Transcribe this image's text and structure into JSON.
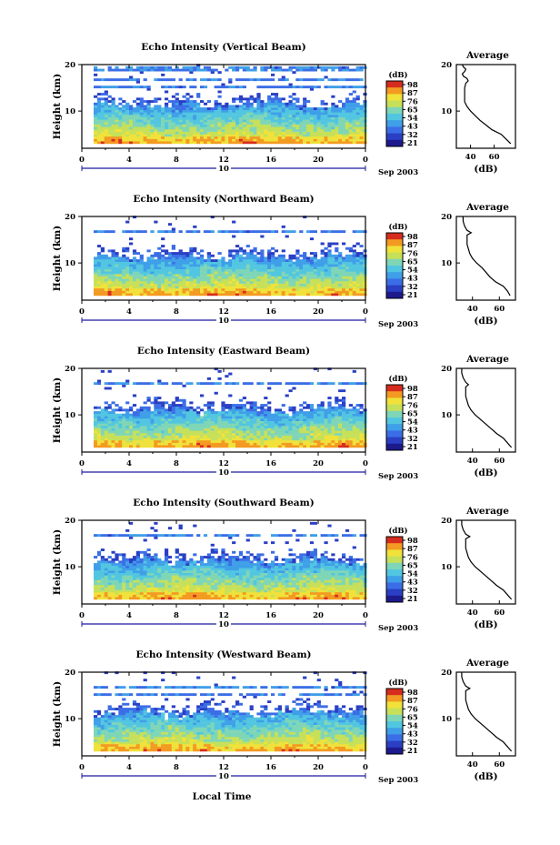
{
  "palette": [
    "#1c1a8c",
    "#2a3fc4",
    "#3b6ee6",
    "#3f9fe8",
    "#52c6e0",
    "#7fd6b6",
    "#c6e05a",
    "#f0e23a",
    "#f39a22",
    "#d62c1f"
  ],
  "colorbar": {
    "unit_label": "(dB)",
    "ticks": [
      "98",
      "87",
      "76",
      "65",
      "54",
      "43",
      "32",
      "21"
    ]
  },
  "footer": {
    "xlabel": "Local Time"
  },
  "chart_data": [
    {
      "type": "heatmap",
      "title": "Echo Intensity (Vertical Beam)",
      "ylabel": "Height (km)",
      "xticks": [
        "0",
        "4",
        "8",
        "12",
        "16",
        "20",
        "0"
      ],
      "yticks": [
        "20",
        "10"
      ],
      "xlim": [
        0,
        24
      ],
      "ylim": [
        2,
        20
      ],
      "date_day": "10",
      "date_month": "Sep 2003",
      "intensity_range_db": [
        21,
        98
      ],
      "clear_air_layer_top_km": 11,
      "upper_bands_km": [
        15,
        16.5,
        18.8
      ],
      "average_profile": {
        "title": "Average",
        "xlabel": "(dB)",
        "xticks": [
          "40",
          "60"
        ],
        "yticks": [
          "20",
          "10"
        ],
        "xlim": [
          28,
          78
        ],
        "height_km": [
          3,
          4,
          5,
          6,
          7,
          8,
          9,
          10,
          11,
          12,
          13,
          14,
          15,
          16,
          16.5,
          17,
          17.5,
          18,
          18.5,
          19,
          19.5,
          20
        ],
        "db": [
          74,
          70,
          66,
          58,
          53,
          48,
          44,
          40,
          37,
          35,
          35,
          35,
          35,
          36,
          38,
          37,
          34,
          33,
          35,
          36,
          34,
          33
        ]
      }
    },
    {
      "type": "heatmap",
      "title": "Echo Intensity (Northward Beam)",
      "ylabel": "Height (km)",
      "xticks": [
        "0",
        "4",
        "8",
        "12",
        "16",
        "20",
        "0"
      ],
      "yticks": [
        "20",
        "10"
      ],
      "xlim": [
        0,
        24
      ],
      "ylim": [
        2,
        20
      ],
      "date_day": "10",
      "date_month": "Sep 2003",
      "intensity_range_db": [
        21,
        98
      ],
      "clear_air_layer_top_km": 11,
      "upper_bands_km": [
        16.5
      ],
      "average_profile": {
        "title": "Average",
        "xlabel": "(dB)",
        "xticks": [
          "40",
          "60"
        ],
        "yticks": [
          "20",
          "10"
        ],
        "xlim": [
          28,
          72
        ],
        "height_km": [
          3,
          4,
          5,
          6,
          7,
          8,
          9,
          10,
          11,
          12,
          13,
          14,
          15,
          16,
          16.5,
          17,
          17.5,
          18,
          19,
          20
        ],
        "db": [
          68,
          66,
          63,
          57,
          53,
          50,
          47,
          43,
          40,
          38,
          37,
          36,
          36,
          36,
          39,
          36,
          35,
          34,
          33,
          33
        ]
      }
    },
    {
      "type": "heatmap",
      "title": "Echo Intensity (Eastward Beam)",
      "ylabel": "Height (km)",
      "xticks": [
        "0",
        "4",
        "8",
        "12",
        "16",
        "20",
        "0"
      ],
      "yticks": [
        "20",
        "10"
      ],
      "xlim": [
        0,
        24
      ],
      "ylim": [
        2,
        20
      ],
      "date_day": "10",
      "date_month": "Sep 2003",
      "intensity_range_db": [
        21,
        98
      ],
      "clear_air_layer_top_km": 11,
      "upper_bands_km": [
        16.5
      ],
      "average_profile": {
        "title": "Average",
        "xlabel": "(dB)",
        "xticks": [
          "40",
          "60"
        ],
        "yticks": [
          "20",
          "10"
        ],
        "xlim": [
          28,
          72
        ],
        "height_km": [
          3,
          4,
          5,
          6,
          7,
          8,
          9,
          10,
          11,
          12,
          13,
          14,
          15,
          16,
          16.5,
          17,
          18,
          19,
          20
        ],
        "db": [
          69,
          66,
          63,
          58,
          54,
          50,
          46,
          42,
          39,
          37,
          36,
          35,
          35,
          35,
          37,
          35,
          33,
          32,
          32
        ]
      }
    },
    {
      "type": "heatmap",
      "title": "Echo Intensity (Southward Beam)",
      "ylabel": "Height (km)",
      "xticks": [
        "0",
        "4",
        "8",
        "12",
        "16",
        "20",
        "0"
      ],
      "yticks": [
        "20",
        "10"
      ],
      "xlim": [
        0,
        24
      ],
      "ylim": [
        2,
        20
      ],
      "date_day": "10",
      "date_month": "Sep 2003",
      "intensity_range_db": [
        21,
        98
      ],
      "clear_air_layer_top_km": 11,
      "upper_bands_km": [
        16.5
      ],
      "average_profile": {
        "title": "Average",
        "xlabel": "(dB)",
        "xticks": [
          "40",
          "60"
        ],
        "yticks": [
          "20",
          "10"
        ],
        "xlim": [
          28,
          72
        ],
        "height_km": [
          3,
          4,
          5,
          6,
          7,
          8,
          9,
          10,
          11,
          12,
          13,
          14,
          15,
          16,
          16.5,
          17,
          18,
          19,
          20
        ],
        "db": [
          69,
          66,
          63,
          58,
          54,
          50,
          46,
          42,
          39,
          37,
          36,
          35,
          35,
          35,
          38,
          35,
          33,
          32,
          32
        ]
      }
    },
    {
      "type": "heatmap",
      "title": "Echo Intensity (Westward Beam)",
      "ylabel": "Height (km)",
      "xticks": [
        "0",
        "4",
        "8",
        "12",
        "16",
        "20",
        "0"
      ],
      "yticks": [
        "20",
        "10"
      ],
      "xlim": [
        0,
        24
      ],
      "ylim": [
        2,
        20
      ],
      "date_day": "10",
      "date_month": "Sep 2003",
      "intensity_range_db": [
        21,
        98
      ],
      "clear_air_layer_top_km": 11,
      "upper_bands_km": [
        15,
        16.5
      ],
      "average_profile": {
        "title": "Average",
        "xlabel": "(dB)",
        "xticks": [
          "40",
          "60"
        ],
        "yticks": [
          "20",
          "10"
        ],
        "xlim": [
          28,
          72
        ],
        "height_km": [
          3,
          4,
          5,
          6,
          7,
          8,
          9,
          10,
          11,
          12,
          13,
          14,
          15,
          16,
          16.5,
          17,
          18,
          19,
          20
        ],
        "db": [
          69,
          66,
          63,
          58,
          54,
          50,
          46,
          42,
          39,
          37,
          36,
          35,
          35,
          35,
          38,
          35,
          33,
          32,
          32
        ]
      }
    }
  ]
}
